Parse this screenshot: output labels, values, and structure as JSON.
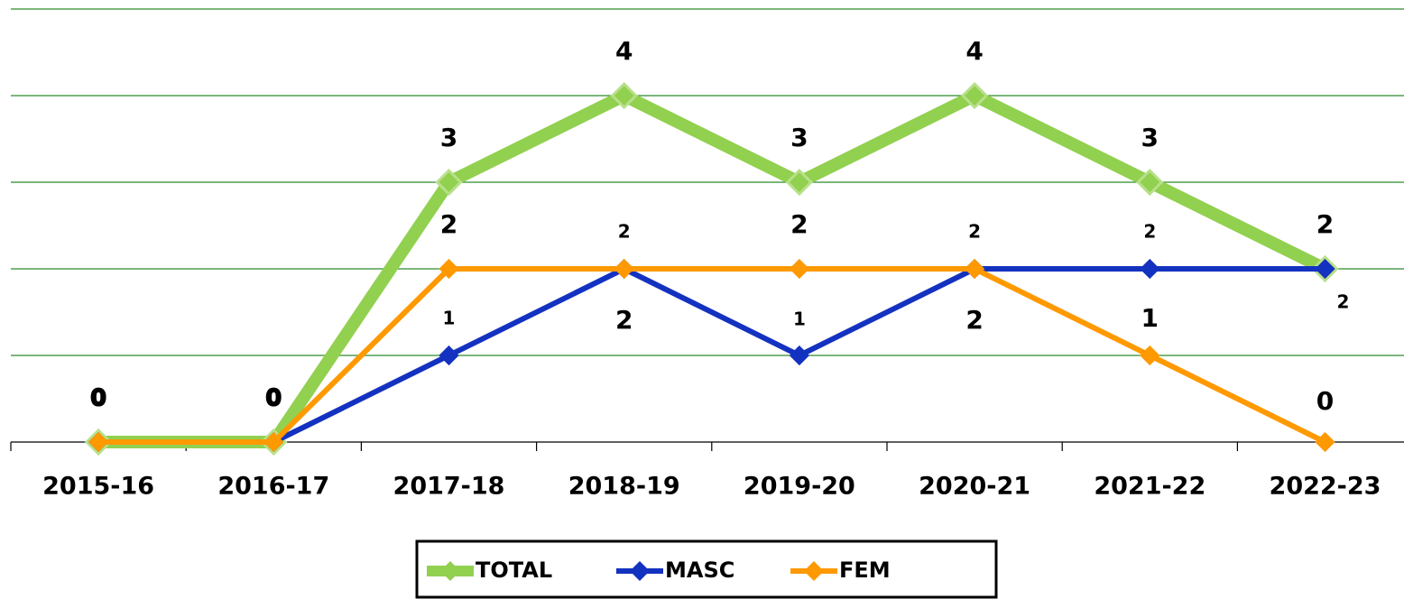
{
  "chart_data": {
    "type": "line",
    "categories": [
      "2015-16",
      "2016-17",
      "2017-18",
      "2018-19",
      "2019-20",
      "2020-21",
      "2021-22",
      "2022-23"
    ],
    "series": [
      {
        "name": "TOTAL",
        "color": "#92d050",
        "values": [
          0,
          0,
          3,
          4,
          3,
          4,
          3,
          2
        ]
      },
      {
        "name": "MASC",
        "color": "#1432c0",
        "values": [
          0,
          0,
          1,
          2,
          1,
          2,
          2,
          2
        ]
      },
      {
        "name": "FEM",
        "color": "#ff9900",
        "values": [
          0,
          0,
          2,
          2,
          2,
          2,
          1,
          0
        ]
      }
    ],
    "ylim": [
      0,
      5
    ],
    "yticks": [
      0,
      1,
      2,
      3,
      4,
      5
    ],
    "grid": true,
    "legend": "bottom"
  }
}
